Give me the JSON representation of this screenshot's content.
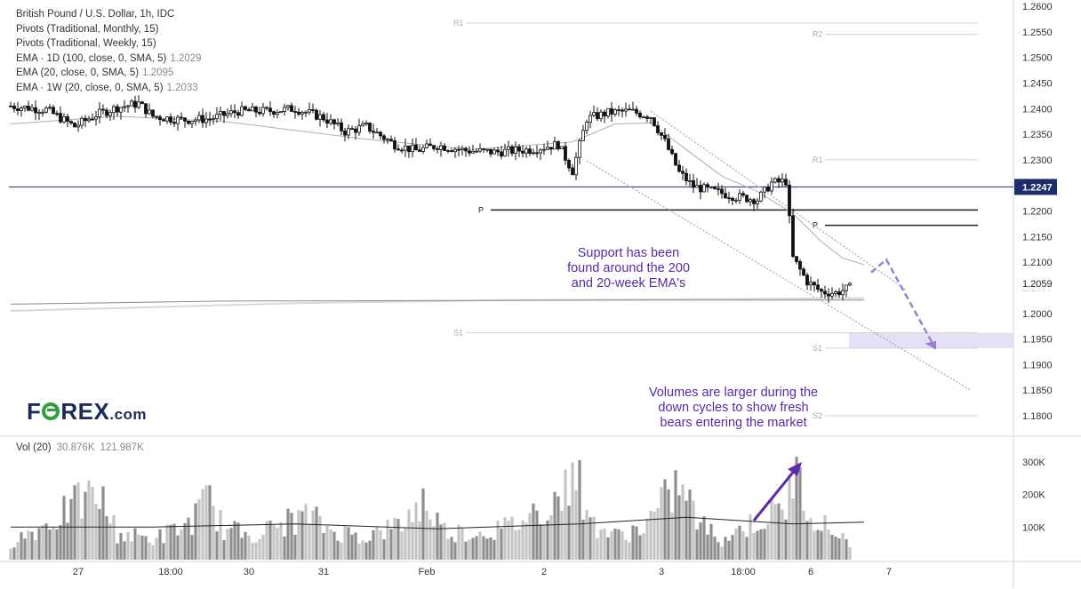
{
  "legend": {
    "symbol": "British Pound / U.S. Dollar, 1h, IDC",
    "pivots_monthly": "Pivots (Traditional, Monthly, 15)",
    "pivots_weekly": "Pivots (Traditional, Weekly, 15)",
    "ema_1d": {
      "label": "EMA · 1D (100, close, 0, SMA, 5)",
      "value": "1.2029"
    },
    "ema_20": {
      "label": "EMA (20, close, 0, SMA, 5)",
      "value": "1.2095"
    },
    "ema_1w": {
      "label": "EMA · 1W (20, close, 0, SMA, 5)",
      "value": "1.2033"
    }
  },
  "volume_legend": {
    "label": "Vol (20)",
    "value1": "30.876K",
    "value2": "121.987K"
  },
  "annotations": {
    "support": [
      "Support has been",
      "found around the 200",
      "and 20-week EMA's"
    ],
    "volumes": [
      "Volumes are larger during the",
      "down cycles to show fresh",
      "bears entering the market"
    ]
  },
  "logo": {
    "pre": "F",
    "post": "REX",
    "suffix": ".com"
  },
  "colors": {
    "up": "#000000",
    "down": "#000000",
    "volume_up": "#c4c4c4",
    "volume_down": "#8e8e8e",
    "horizontal_line": "#1c2d6b",
    "arrow": "#9a7fd6",
    "annotation": "#5b2aa8",
    "zone": "#e6e0f7"
  },
  "chart_data": {
    "type": "candlestick",
    "y_axis": {
      "min": 1.175,
      "max": 1.26,
      "ticks": [
        "1.2600",
        "1.2550",
        "1.2500",
        "1.2450",
        "1.2400",
        "1.2350",
        "1.2300",
        "1.2250",
        "1.2200",
        "1.2150",
        "1.2100",
        "1.2050",
        "1.2000",
        "1.1950",
        "1.1900",
        "1.1850",
        "1.1800"
      ]
    },
    "x_axis": {
      "labels": [
        "27",
        "18:00",
        "30",
        "31",
        "Feb",
        "2",
        "3",
        "18:00",
        "6",
        "7"
      ],
      "label_positions_bar": [
        19,
        45,
        67,
        88,
        117,
        150,
        183,
        206,
        225,
        247
      ]
    },
    "last_price": "1.2247",
    "price_label": "1.2059",
    "bars": 240,
    "close_path": [
      [
        0,
        1.2405
      ],
      [
        10,
        1.2398
      ],
      [
        18,
        1.2365
      ],
      [
        24,
        1.2388
      ],
      [
        30,
        1.2402
      ],
      [
        36,
        1.241
      ],
      [
        40,
        1.2385
      ],
      [
        48,
        1.2378
      ],
      [
        56,
        1.238
      ],
      [
        64,
        1.2395
      ],
      [
        72,
        1.2395
      ],
      [
        80,
        1.24
      ],
      [
        88,
        1.2382
      ],
      [
        94,
        1.2355
      ],
      [
        100,
        1.2365
      ],
      [
        108,
        1.233
      ],
      [
        114,
        1.2318
      ],
      [
        120,
        1.2328
      ],
      [
        128,
        1.2318
      ],
      [
        136,
        1.2315
      ],
      [
        146,
        1.232
      ],
      [
        154,
        1.233
      ],
      [
        158,
        1.2278
      ],
      [
        162,
        1.238
      ],
      [
        168,
        1.2392
      ],
      [
        174,
        1.2395
      ],
      [
        180,
        1.2385
      ],
      [
        184,
        1.2335
      ],
      [
        188,
        1.2275
      ],
      [
        192,
        1.2248
      ],
      [
        198,
        1.2238
      ],
      [
        204,
        1.2228
      ],
      [
        210,
        1.2222
      ],
      [
        214,
        1.2255
      ],
      [
        218,
        1.2258
      ],
      [
        220,
        1.2108
      ],
      [
        224,
        1.2062
      ],
      [
        228,
        1.2042
      ],
      [
        232,
        1.204
      ],
      [
        236,
        1.205
      ],
      [
        240,
        1.2058
      ]
    ],
    "ema_20w": [
      [
        0,
        1.2018
      ],
      [
        60,
        1.2024
      ],
      [
        120,
        1.2025
      ],
      [
        180,
        1.2026
      ],
      [
        240,
        1.2026
      ]
    ],
    "ema_200": [
      [
        0,
        1.2005
      ],
      [
        40,
        1.2012
      ],
      [
        80,
        1.202
      ],
      [
        140,
        1.2026
      ],
      [
        200,
        1.2028
      ],
      [
        240,
        1.203
      ]
    ],
    "ema_20": [
      [
        0,
        1.237
      ],
      [
        30,
        1.2385
      ],
      [
        60,
        1.2375
      ],
      [
        100,
        1.234
      ],
      [
        130,
        1.232
      ],
      [
        158,
        1.2335
      ],
      [
        170,
        1.237
      ],
      [
        180,
        1.2372
      ],
      [
        190,
        1.232
      ],
      [
        200,
        1.2268
      ],
      [
        210,
        1.2238
      ],
      [
        220,
        1.2195
      ],
      [
        228,
        1.214
      ],
      [
        234,
        1.2108
      ],
      [
        240,
        1.2095
      ]
    ],
    "channel_upper": [
      [
        180,
        1.2395
      ],
      [
        252,
        1.2045
      ]
    ],
    "channel_lower": [
      [
        162,
        1.2298
      ],
      [
        270,
        1.185
      ]
    ],
    "pivots": [
      {
        "label": "R1",
        "price": 1.2567,
        "x_from_bar": 128,
        "x_to_bar": 272
      },
      {
        "label": "R2",
        "price": 1.2545,
        "x_from_bar": 229,
        "x_to_bar": 272
      },
      {
        "label": "R1",
        "price": 1.23,
        "x_from_bar": 229,
        "x_to_bar": 272
      },
      {
        "label": "P",
        "price": 1.2202,
        "x_from_bar": 135,
        "x_to_bar": 272
      },
      {
        "label": "P",
        "price": 1.2172,
        "x_from_bar": 229,
        "x_to_bar": 272
      },
      {
        "label": "S1",
        "price": 1.1962,
        "x_from_bar": 128,
        "x_to_bar": 272
      },
      {
        "label": "S1",
        "price": 1.1932,
        "x_from_bar": 229,
        "x_to_bar": 272
      },
      {
        "label": "S2",
        "price": 1.18,
        "x_from_bar": 229,
        "x_to_bar": 272
      }
    ],
    "volume": {
      "axis_ticks": [
        "300K",
        "200K",
        "100K"
      ],
      "max": 370000,
      "profile": [
        [
          0,
          60000
        ],
        [
          10,
          120000
        ],
        [
          20,
          200000
        ],
        [
          25,
          220000
        ],
        [
          30,
          90000
        ],
        [
          40,
          70000
        ],
        [
          50,
          120000
        ],
        [
          56,
          210000
        ],
        [
          60,
          100000
        ],
        [
          70,
          90000
        ],
        [
          78,
          130000
        ],
        [
          84,
          150000
        ],
        [
          90,
          100000
        ],
        [
          100,
          80000
        ],
        [
          110,
          120000
        ],
        [
          116,
          200000
        ],
        [
          122,
          100000
        ],
        [
          130,
          90000
        ],
        [
          140,
          110000
        ],
        [
          150,
          180000
        ],
        [
          156,
          230000
        ],
        [
          158,
          370000
        ],
        [
          162,
          140000
        ],
        [
          170,
          80000
        ],
        [
          178,
          110000
        ],
        [
          184,
          200000
        ],
        [
          188,
          260000
        ],
        [
          194,
          120000
        ],
        [
          200,
          70000
        ],
        [
          206,
          110000
        ],
        [
          212,
          140000
        ],
        [
          218,
          180000
        ],
        [
          220,
          300000
        ],
        [
          224,
          200000
        ],
        [
          228,
          120000
        ],
        [
          234,
          80000
        ],
        [
          240,
          40000
        ]
      ],
      "ma20": [
        [
          0,
          100000
        ],
        [
          40,
          100000
        ],
        [
          80,
          110000
        ],
        [
          120,
          95000
        ],
        [
          160,
          110000
        ],
        [
          190,
          130000
        ],
        [
          220,
          110000
        ],
        [
          240,
          115000
        ]
      ]
    }
  }
}
